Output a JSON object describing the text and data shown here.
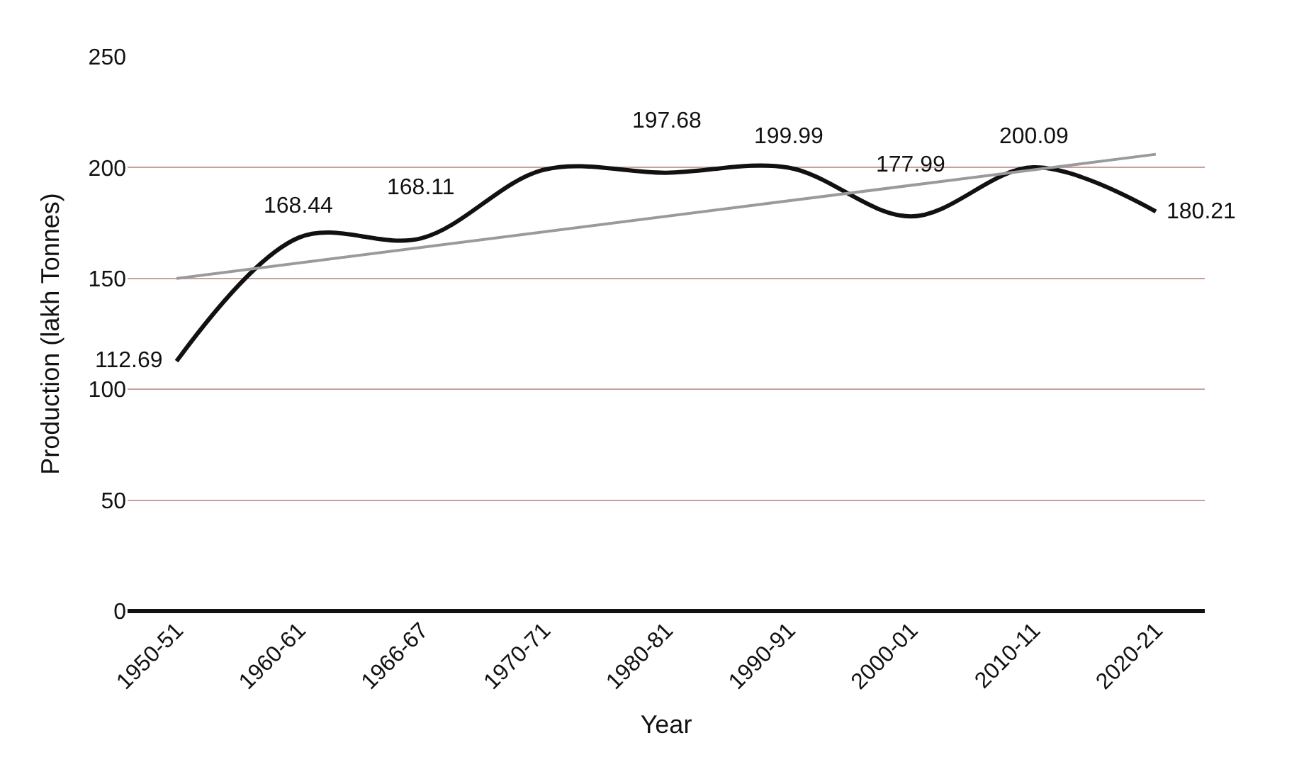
{
  "chart_data": {
    "type": "line",
    "xlabel": "Year",
    "ylabel": "Production (lakh Tonnes)",
    "categories": [
      "1950-51",
      "1960-61",
      "1966-67",
      "1970-71",
      "1980-81",
      "1990-91",
      "2000-01",
      "2010-11",
      "2020-21"
    ],
    "series": [
      {
        "color": "#111111",
        "values": [
          112.69,
          168.44,
          168.11,
          199,
          197.68,
          199.99,
          177.99,
          200.09,
          180.21
        ],
        "value_labels": [
          "112.69",
          "168.44",
          "168.11",
          null,
          "197.68",
          "199.99",
          "177.99",
          "200.09",
          "180.21"
        ]
      },
      {
        "type": "line",
        "color": "#9a9a9a",
        "values": [
          150,
          null,
          null,
          null,
          null,
          null,
          null,
          null,
          206
        ]
      }
    ],
    "ylim": [
      0,
      250
    ],
    "yticks": [
      0,
      50,
      100,
      150,
      200,
      250
    ],
    "grid": "y",
    "marker": "none",
    "line_style": "solid"
  }
}
